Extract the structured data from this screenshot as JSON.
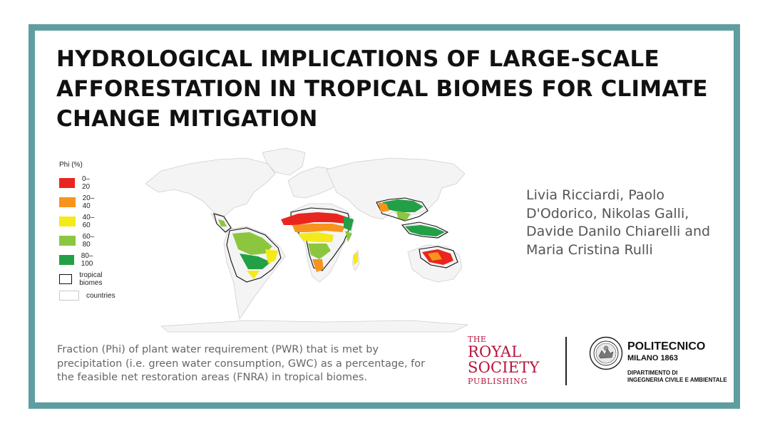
{
  "title": "HYDROLOGICAL IMPLICATIONS OF LARGE-SCALE AFFORESTATION IN TROPICAL BIOMES FOR CLIMATE CHANGE MITIGATION",
  "legend": {
    "title": "Phi (%)",
    "items": [
      {
        "label": "0–20",
        "color": "#e8261f"
      },
      {
        "label": "20–40",
        "color": "#f7941d"
      },
      {
        "label": "40–60",
        "color": "#f4ea19"
      },
      {
        "label": "60–80",
        "color": "#8cc63f"
      },
      {
        "label": "80–100",
        "color": "#23a046"
      },
      {
        "label": "tropical biomes",
        "color": "#ffffff",
        "border": "#111111"
      },
      {
        "label": "countries",
        "color": "#ffffff",
        "border": "#c8c8c8"
      }
    ]
  },
  "authors": [
    "Livia Ricciardi, Paolo",
    "D'Odorico, Nikolas Galli,",
    "Davide Danilo Chiarelli and",
    "Maria Cristina Rulli"
  ],
  "caption": [
    "Fraction (Phi) of plant water requirement (PWR) that is met by",
    "precipitation (i.e. green water consumption, GWC) as a percentage, for",
    "the feasible net restoration areas (FNRA) in tropical biomes."
  ],
  "royal_society": {
    "line1": "THE",
    "line2": "ROYAL",
    "line3": "SOCIETY",
    "line4": "PUBLISHING"
  },
  "polimi": {
    "name": "POLITECNICO",
    "city": "MILANO 1863",
    "dept1": "DIPARTIMENTO DI",
    "dept2": "INGEGNERIA CIVILE E AMBIENTALE"
  },
  "colors": {
    "border": "#5f9ea0",
    "brand_red": "#b8123b"
  }
}
